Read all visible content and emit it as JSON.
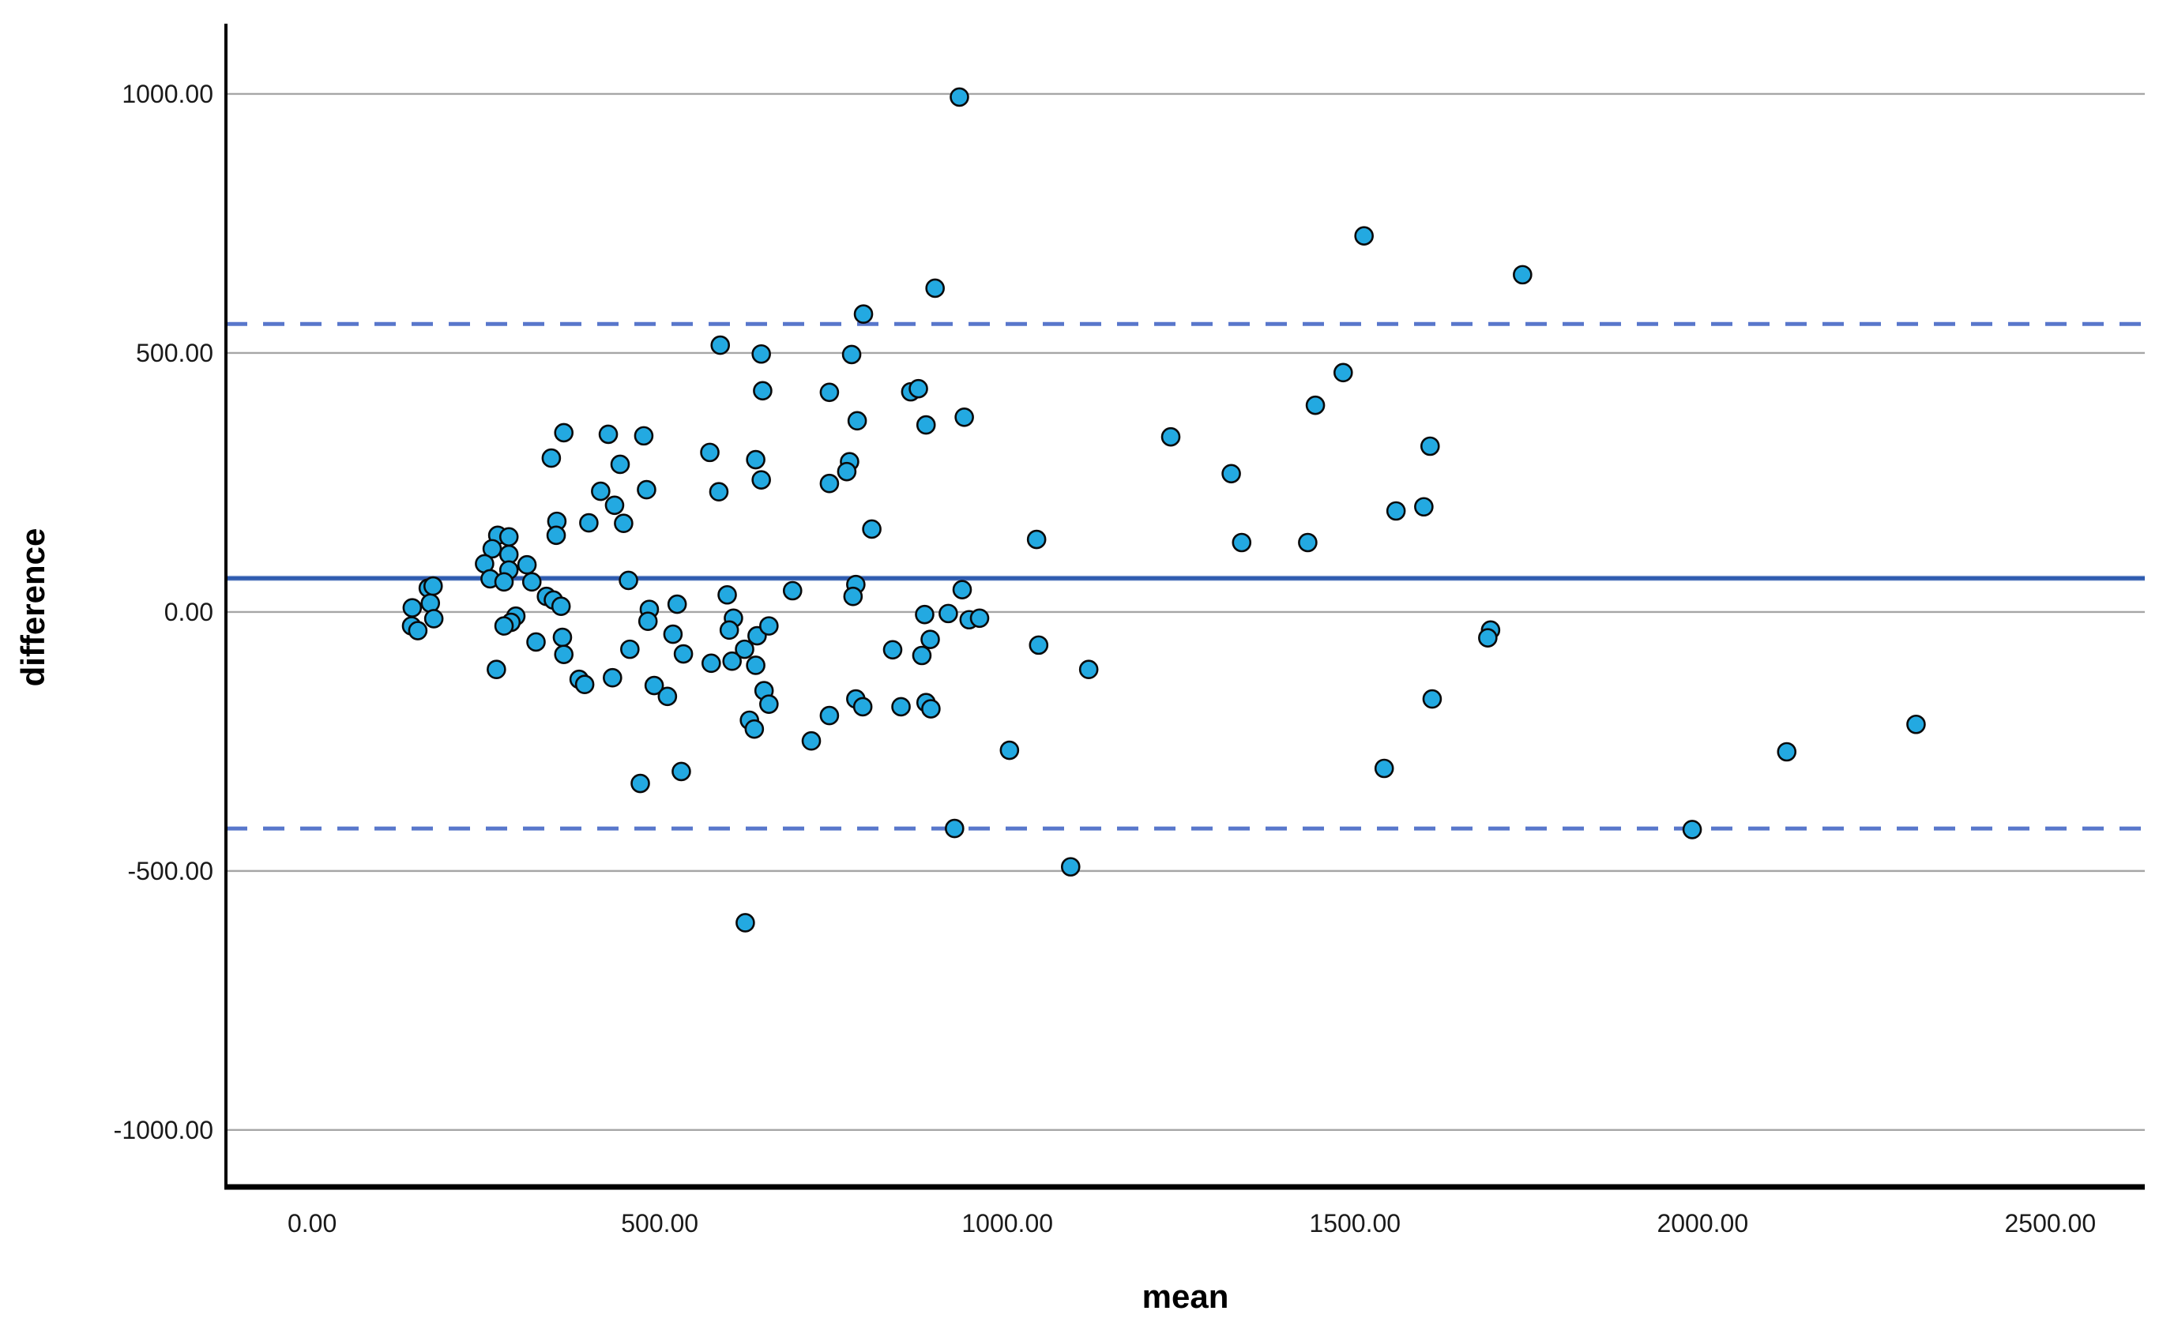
{
  "chart_data": {
    "type": "scatter",
    "title": "",
    "xlabel": "mean",
    "ylabel": "difference",
    "x_ticks": [
      0,
      500,
      1000,
      1500,
      2000,
      2500
    ],
    "x_tick_labels": [
      "0.00",
      "500.00",
      "1000.00",
      "1500.00",
      "2000.00",
      "2500.00"
    ],
    "y_ticks": [
      1000,
      500,
      0,
      -500,
      -1000
    ],
    "y_tick_labels": [
      "1000.00",
      "500.00",
      "0.00",
      "-500.00",
      "-1000.00"
    ],
    "xlim": [
      -124,
      2636
    ],
    "ylim": [
      -1110,
      1128
    ],
    "grid": "horizontal-only",
    "legend": "none",
    "reference_lines": {
      "mean_bias": 65,
      "upper_loa": 556,
      "lower_loa": -418
    },
    "colors": {
      "point_fill": "#23A9E1",
      "point_stroke": "#0a0a0a",
      "mean_line": "#2F5CB0",
      "loa_dashed_line": "#5877CB",
      "gridline": "#A6A6A6",
      "axis_line": "#000000",
      "tick_label": "#1a1a1a"
    },
    "points": [
      [
        587,
        515
      ],
      [
        646,
        498
      ],
      [
        648,
        427
      ],
      [
        362,
        346
      ],
      [
        344,
        297
      ],
      [
        426,
        343
      ],
      [
        477,
        340
      ],
      [
        443,
        285
      ],
      [
        572,
        308
      ],
      [
        638,
        294
      ],
      [
        931,
        994
      ],
      [
        896,
        625
      ],
      [
        793,
        575
      ],
      [
        776,
        497
      ],
      [
        861,
        425
      ],
      [
        872,
        431
      ],
      [
        938,
        376
      ],
      [
        883,
        361
      ],
      [
        784,
        369
      ],
      [
        773,
        290
      ],
      [
        769,
        271
      ],
      [
        1235,
        338
      ],
      [
        1322,
        267
      ],
      [
        744,
        424
      ],
      [
        1513,
        726
      ],
      [
        1741,
        651
      ],
      [
        1483,
        462
      ],
      [
        1443,
        399
      ],
      [
        1608,
        320
      ],
      [
        805,
        160
      ],
      [
        1042,
        140
      ],
      [
        1337,
        134
      ],
      [
        782,
        53
      ],
      [
        778,
        30
      ],
      [
        935,
        43
      ],
      [
        881,
        -5
      ],
      [
        915,
        -3
      ],
      [
        945,
        -15
      ],
      [
        960,
        -12
      ],
      [
        835,
        -73
      ],
      [
        889,
        -53
      ],
      [
        877,
        -84
      ],
      [
        1045,
        -64
      ],
      [
        1117,
        -111
      ],
      [
        782,
        -168
      ],
      [
        792,
        -183
      ],
      [
        847,
        -183
      ],
      [
        883,
        -175
      ],
      [
        890,
        -187
      ],
      [
        1003,
        -267
      ],
      [
        924,
        -418
      ],
      [
        1091,
        -492
      ],
      [
        744,
        248
      ],
      [
        744,
        -200
      ],
      [
        1559,
        195
      ],
      [
        1599,
        203
      ],
      [
        1432,
        134
      ],
      [
        1695,
        -35
      ],
      [
        1691,
        -50
      ],
      [
        1611,
        -168
      ],
      [
        1542,
        -302
      ],
      [
        1985,
        -420
      ],
      [
        2307,
        -217
      ],
      [
        2121,
        -270
      ],
      [
        267,
        148
      ],
      [
        283,
        145
      ],
      [
        259,
        122
      ],
      [
        283,
        111
      ],
      [
        248,
        93
      ],
      [
        283,
        81
      ],
      [
        256,
        64
      ],
      [
        276,
        58
      ],
      [
        309,
        91
      ],
      [
        316,
        58
      ],
      [
        352,
        175
      ],
      [
        351,
        148
      ],
      [
        448,
        171
      ],
      [
        455,
        61
      ],
      [
        167,
        46
      ],
      [
        144,
        8
      ],
      [
        170,
        17
      ],
      [
        143,
        -27
      ],
      [
        175,
        -13
      ],
      [
        152,
        -36
      ],
      [
        174,
        50
      ],
      [
        293,
        -8
      ],
      [
        286,
        -20
      ],
      [
        276,
        -27
      ],
      [
        337,
        30
      ],
      [
        347,
        23
      ],
      [
        358,
        11
      ],
      [
        322,
        -58
      ],
      [
        265,
        -111
      ],
      [
        384,
        -130
      ],
      [
        392,
        -140
      ],
      [
        360,
        -49
      ],
      [
        362,
        -82
      ],
      [
        597,
        33
      ],
      [
        691,
        41
      ],
      [
        485,
        5
      ],
      [
        483,
        -18
      ],
      [
        525,
        15
      ],
      [
        519,
        -43
      ],
      [
        534,
        -81
      ],
      [
        606,
        -12
      ],
      [
        600,
        -35
      ],
      [
        640,
        -46
      ],
      [
        657,
        -27
      ],
      [
        604,
        -95
      ],
      [
        622,
        -72
      ],
      [
        638,
        -103
      ],
      [
        574,
        -99
      ],
      [
        457,
        -72
      ],
      [
        432,
        -127
      ],
      [
        492,
        -142
      ],
      [
        511,
        -163
      ],
      [
        650,
        -152
      ],
      [
        657,
        -178
      ],
      [
        629,
        -209
      ],
      [
        636,
        -226
      ],
      [
        718,
        -249
      ],
      [
        531,
        -308
      ],
      [
        472,
        -331
      ],
      [
        623,
        -600
      ],
      [
        415,
        233
      ],
      [
        435,
        206
      ],
      [
        481,
        236
      ],
      [
        398,
        172
      ],
      [
        585,
        232
      ],
      [
        646,
        255
      ]
    ]
  }
}
